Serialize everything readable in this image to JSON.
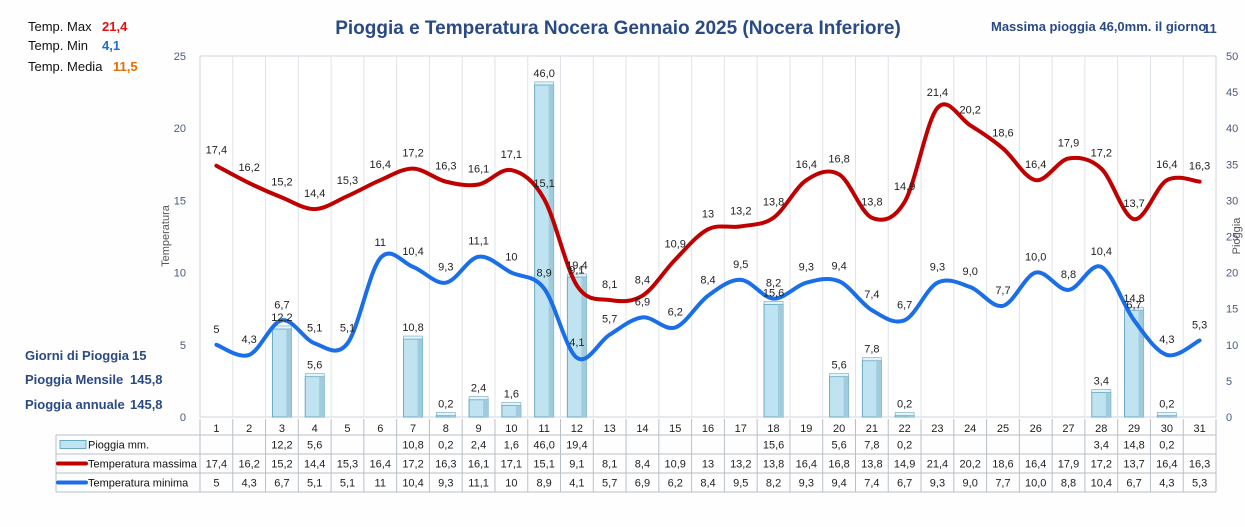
{
  "title": "Pioggia e Temperatura Nocera Gennaio 2025 (Nocera Inferiore)",
  "max_rain_text": "Massima pioggia   46,0mm. il giorno",
  "max_rain_day": "11",
  "stats": {
    "tmax_label": "Temp. Max",
    "tmax_value": "21,4",
    "tmin_label": "Temp.  Min",
    "tmin_value": "4,1",
    "tmed_label": "Temp. Media",
    "tmed_value": "11,5"
  },
  "summary": {
    "rain_days_label": "Giorni di Pioggia",
    "rain_days_value": "15",
    "monthly_label": "Pioggia Mensile",
    "monthly_value": "145,8",
    "annual_label": "Pioggia annuale",
    "annual_value": "145,8"
  },
  "colors": {
    "tmax": "#c00000",
    "tmin": "#1a6fe8",
    "bar_fill": "#bfe3f0",
    "bar_stroke": "#6aa9c4"
  },
  "chart_data": {
    "type": "bar",
    "xlabel": "",
    "ylabel": "Temperatura",
    "y2label": "Pioggia",
    "ylim": [
      0,
      25
    ],
    "y2lim": [
      0,
      50
    ],
    "yticks": [
      0,
      5,
      10,
      15,
      20,
      25
    ],
    "y2ticks": [
      0,
      5,
      10,
      15,
      20,
      25,
      30,
      35,
      40,
      45,
      50
    ],
    "grid": true,
    "categories": [
      "1",
      "2",
      "3",
      "4",
      "5",
      "6",
      "7",
      "8",
      "9",
      "10",
      "11",
      "12",
      "13",
      "14",
      "15",
      "16",
      "17",
      "18",
      "19",
      "20",
      "21",
      "22",
      "23",
      "24",
      "25",
      "26",
      "27",
      "28",
      "29",
      "30",
      "31"
    ],
    "series": [
      {
        "name": "Pioggia mm.",
        "kind": "bar",
        "axis": "right",
        "values": [
          null,
          null,
          12.2,
          5.6,
          null,
          null,
          10.8,
          0.2,
          2.4,
          1.6,
          46.0,
          19.4,
          null,
          null,
          null,
          null,
          null,
          15.6,
          null,
          5.6,
          7.8,
          0.2,
          null,
          null,
          null,
          null,
          null,
          3.4,
          14.8,
          0.2,
          null
        ],
        "labels": [
          "",
          "",
          "12,2",
          "5,6",
          "",
          "",
          "10,8",
          "0,2",
          "2,4",
          "1,6",
          "46,0",
          "19,4",
          "",
          "",
          "",
          "",
          "",
          "15,6",
          "",
          "5,6",
          "7,8",
          "0,2",
          "",
          "",
          "",
          "",
          "",
          "3,4",
          "14,8",
          "0,2",
          ""
        ]
      },
      {
        "name": "Temperatura massima",
        "kind": "line",
        "axis": "left",
        "values": [
          17.4,
          16.2,
          15.2,
          14.4,
          15.3,
          16.4,
          17.2,
          16.3,
          16.1,
          17.1,
          15.1,
          9.1,
          8.1,
          8.4,
          10.9,
          13,
          13.2,
          13.8,
          16.4,
          16.8,
          13.8,
          14.9,
          21.4,
          20.2,
          18.6,
          16.4,
          17.9,
          17.2,
          13.7,
          16.4,
          16.3
        ],
        "labels": [
          "17,4",
          "16,2",
          "15,2",
          "14,4",
          "15,3",
          "16,4",
          "17,2",
          "16,3",
          "16,1",
          "17,1",
          "15,1",
          "9,1",
          "8,1",
          "8,4",
          "10,9",
          "13",
          "13,2",
          "13,8",
          "16,4",
          "16,8",
          "13,8",
          "14,9",
          "21,4",
          "20,2",
          "18,6",
          "16,4",
          "17,9",
          "17,2",
          "13,7",
          "16,4",
          "16,3"
        ]
      },
      {
        "name": "Temperatura minima",
        "kind": "line",
        "axis": "left",
        "values": [
          5,
          4.3,
          6.7,
          5.1,
          5.1,
          11,
          10.4,
          9.3,
          11.1,
          10,
          8.9,
          4.1,
          5.7,
          6.9,
          6.2,
          8.4,
          9.5,
          8.2,
          9.3,
          9.4,
          7.4,
          6.7,
          9.3,
          9.0,
          7.7,
          10.0,
          8.8,
          10.4,
          6.7,
          4.3,
          5.3
        ],
        "labels": [
          "5",
          "4,3",
          "6,7",
          "5,1",
          "5,1",
          "11",
          "10,4",
          "9,3",
          "11,1",
          "10",
          "8,9",
          "4,1",
          "5,7",
          "6,9",
          "6,2",
          "8,4",
          "9,5",
          "8,2",
          "9,3",
          "9,4",
          "7,4",
          "6,7",
          "9,3",
          "9,0",
          "7,7",
          "10,0",
          "8,8",
          "10,4",
          "6,7",
          "4,3",
          "5,3"
        ]
      }
    ]
  }
}
